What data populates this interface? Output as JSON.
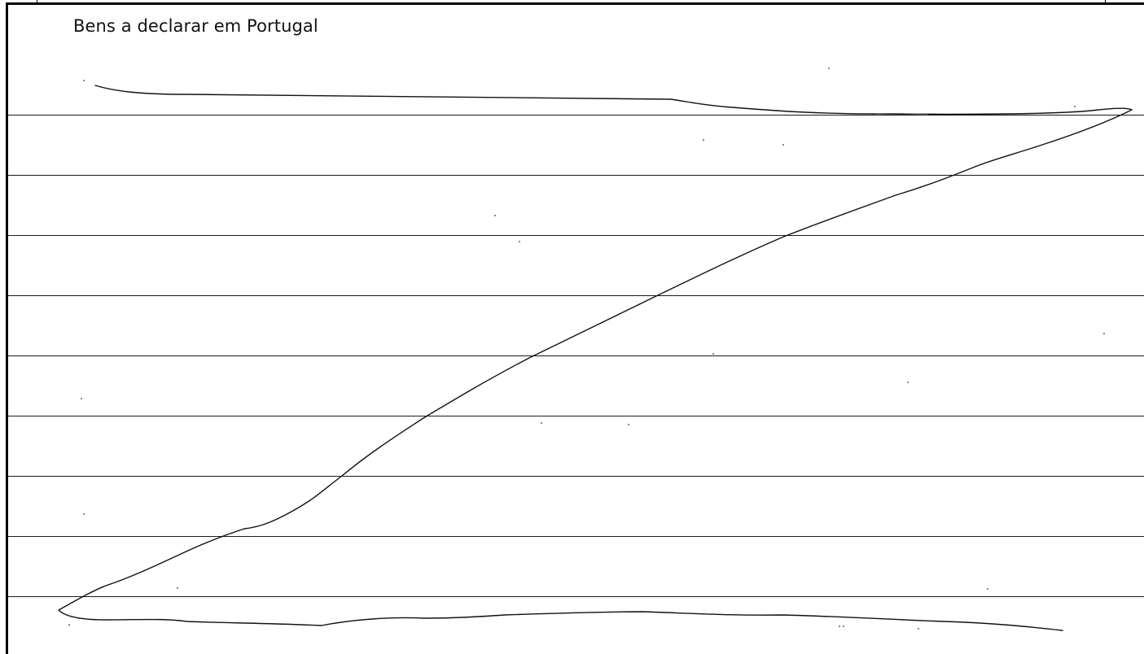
{
  "section": {
    "title": "Bens a declarar em Portugal",
    "line_count": 9
  }
}
